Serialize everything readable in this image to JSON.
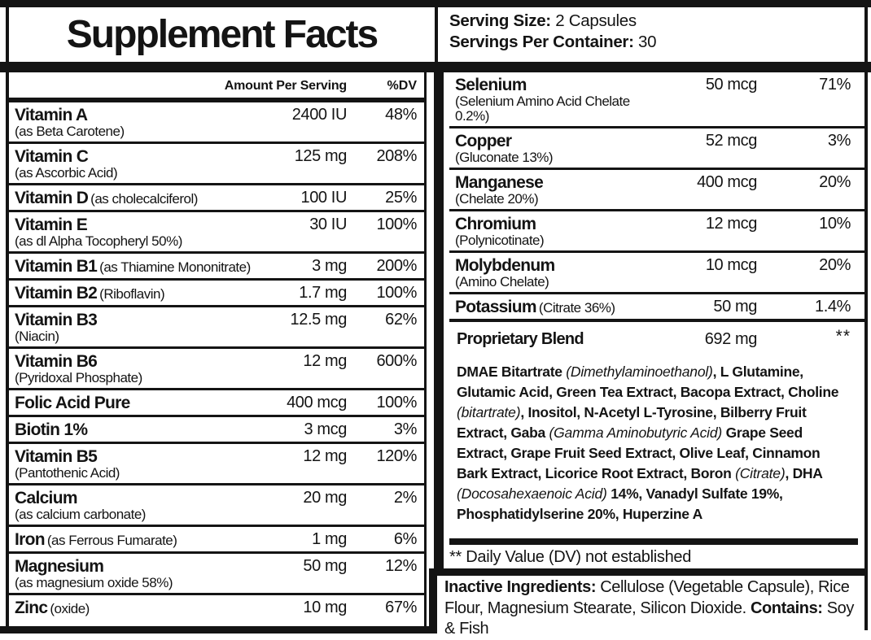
{
  "title": "Supplement Facts",
  "serving": {
    "size_label": "Serving Size:",
    "size_value": " 2 Capsules",
    "container_label": "Servings Per Container:",
    "container_value": " 30"
  },
  "table_header": {
    "amount": "Amount Per Serving",
    "dv": "%DV"
  },
  "left_rows": [
    {
      "name": "Vitamin A",
      "desc": "(as Beta Carotene)",
      "inline": false,
      "amount": "2400 IU",
      "dv": "48%"
    },
    {
      "name": "Vitamin C",
      "desc": "(as Ascorbic Acid)",
      "inline": false,
      "amount": "125 mg",
      "dv": "208%"
    },
    {
      "name": "Vitamin D",
      "desc": "(as cholecalciferol)",
      "inline": true,
      "amount": "100 IU",
      "dv": "25%"
    },
    {
      "name": "Vitamin E",
      "desc": "(as dl Alpha Tocopheryl 50%)",
      "inline": false,
      "amount": "30 IU",
      "dv": "100%"
    },
    {
      "name": "Vitamin B1",
      "desc": "(as Thiamine Mononitrate)",
      "inline": true,
      "amount": "3 mg",
      "dv": "200%"
    },
    {
      "name": "Vitamin B2",
      "desc": "(Riboflavin)",
      "inline": true,
      "amount": "1.7 mg",
      "dv": "100%"
    },
    {
      "name": "Vitamin B3",
      "desc": "(Niacin)",
      "inline": false,
      "amount": "12.5 mg",
      "dv": "62%"
    },
    {
      "name": "Vitamin B6",
      "desc": "(Pyridoxal Phosphate)",
      "inline": false,
      "amount": "12 mg",
      "dv": "600%"
    },
    {
      "name": "Folic Acid Pure",
      "desc": "",
      "inline": true,
      "amount": "400 mcg",
      "dv": "100%"
    },
    {
      "name": "Biotin 1%",
      "desc": "",
      "inline": true,
      "amount": "3 mcg",
      "dv": "3%"
    },
    {
      "name": "Vitamin B5",
      "desc": "(Pantothenic Acid)",
      "inline": false,
      "amount": "12 mg",
      "dv": "120%"
    },
    {
      "name": "Calcium",
      "desc": "(as calcium carbonate)",
      "inline": false,
      "amount": "20 mg",
      "dv": "2%"
    },
    {
      "name": "Iron",
      "desc": "(as Ferrous Fumarate)",
      "inline": true,
      "amount": "1 mg",
      "dv": "6%"
    },
    {
      "name": "Magnesium",
      "desc": "(as magnesium oxide 58%)",
      "inline": false,
      "amount": "50 mg",
      "dv": "12%"
    },
    {
      "name": "Zinc",
      "desc": "(oxide)",
      "inline": true,
      "amount": "10 mg",
      "dv": "67%"
    }
  ],
  "right_rows": [
    {
      "name": "Selenium",
      "desc": "(Selenium Amino Acid Chelate 0.2%)",
      "inline": false,
      "amount": "50 mcg",
      "dv": "71%"
    },
    {
      "name": "Copper",
      "desc": "(Gluconate 13%)",
      "inline": false,
      "amount": "52 mcg",
      "dv": "3%"
    },
    {
      "name": "Manganese",
      "desc": "(Chelate 20%)",
      "inline": false,
      "amount": "400 mcg",
      "dv": "20%"
    },
    {
      "name": "Chromium",
      "desc": "(Polynicotinate)",
      "inline": false,
      "amount": "12 mcg",
      "dv": "10%"
    },
    {
      "name": "Molybdenum",
      "desc": "(Amino Chelate)",
      "inline": false,
      "amount": "10 mcg",
      "dv": "20%"
    },
    {
      "name": "Potassium",
      "desc": "(Citrate 36%)",
      "inline": true,
      "amount": "50 mg",
      "dv": "1.4%"
    }
  ],
  "proprietary_blend": {
    "name": "Proprietary Blend",
    "amount": "692 mg",
    "dv": "**",
    "ingredients": [
      {
        "text": "DMAE Bitartrate ",
        "italic": false
      },
      {
        "text": "(Dimethylaminoethanol)",
        "italic": true
      },
      {
        "text": ", L Glutamine, Glutamic Acid, Green Tea Extract, Bacopa Extract, Choline ",
        "italic": false
      },
      {
        "text": "(bitartrate)",
        "italic": true
      },
      {
        "text": ", Inositol, N-Acetyl L-Tyrosine, Bilberry Fruit Extract, Gaba ",
        "italic": false
      },
      {
        "text": "(Gamma Aminobutyric Acid)",
        "italic": true
      },
      {
        "text": " Grape Seed Extract, Grape Fruit Seed Extract, Olive Leaf, Cinnamon Bark Extract, Licorice Root Extract, Boron ",
        "italic": false
      },
      {
        "text": "(Citrate)",
        "italic": true
      },
      {
        "text": ", DHA ",
        "italic": false
      },
      {
        "text": "(Docosahexaenoic Acid)",
        "italic": true
      },
      {
        "text": " 14%, Vanadyl Sulfate 19%, Phosphatidylserine 20%, Huperzine A",
        "italic": false
      }
    ]
  },
  "footnote": "** Daily Value (DV) not established",
  "inactive": {
    "label": "Inactive Ingredients:",
    "value": " Cellulose (Vegetable Capsule), Rice Flour, Magnesium Stearate, Silicon Dioxide.",
    "contains_label": "Contains:",
    "contains_value": " Soy & Fish"
  },
  "colors": {
    "ink": "#141414",
    "background": "#ffffff"
  }
}
